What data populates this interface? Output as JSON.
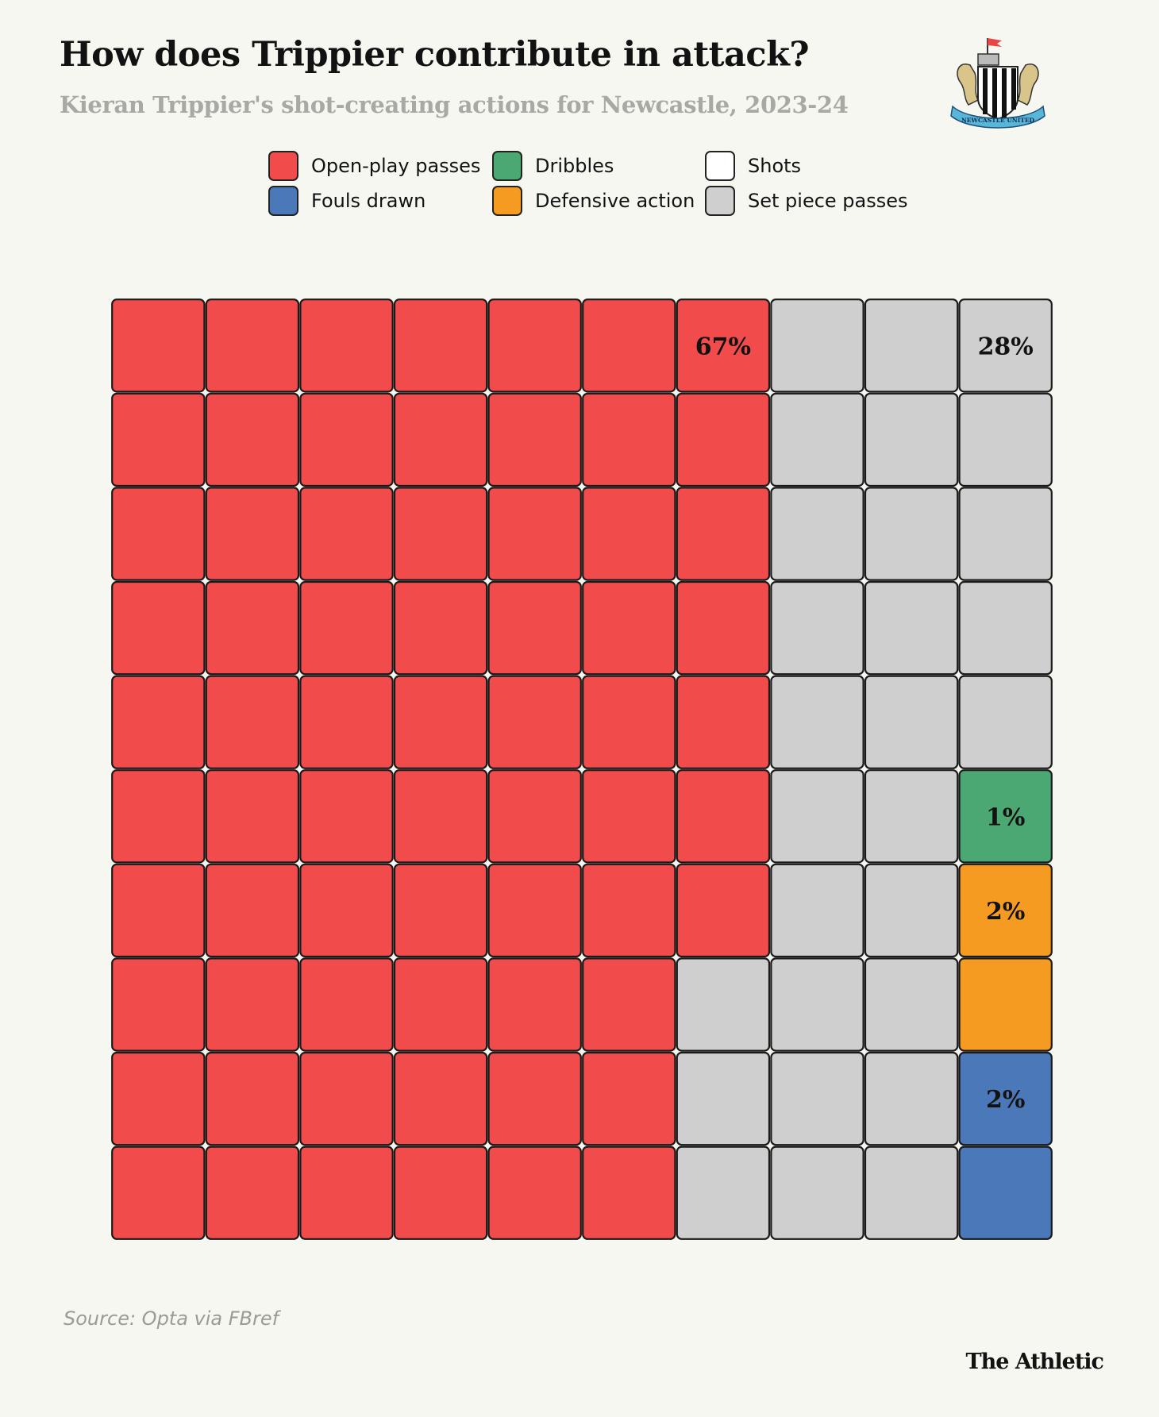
{
  "title": "How does Trippier contribute in attack?",
  "subtitle": "Kieran Trippier's shot-creating actions for Newcastle, 2023-24",
  "source": "Source: Opta via FBref",
  "brand": "The Athletic",
  "crest_text": "NEWCASTLE UNITED",
  "legend": [
    {
      "label": "Open-play passes",
      "color": "#f24b4b"
    },
    {
      "label": "Dribbles",
      "color": "#4ca872"
    },
    {
      "label": "Shots",
      "color": "#ffffff"
    },
    {
      "label": "Fouls drawn",
      "color": "#4a78b8"
    },
    {
      "label": "Defensive action",
      "color": "#f59b21"
    },
    {
      "label": "Set piece passes",
      "color": "#cfcfcf"
    }
  ],
  "chart_data": {
    "type": "waffle",
    "title": "How does Trippier contribute in attack?",
    "subtitle": "Kieran Trippier's shot-creating actions for Newcastle, 2023-24",
    "rows": 10,
    "cols": 10,
    "fill_order": "column-major",
    "categories": [
      "Open-play passes",
      "Set piece passes",
      "Dribbles",
      "Defensive action",
      "Fouls drawn",
      "Shots"
    ],
    "values": [
      67,
      28,
      1,
      2,
      2,
      0
    ],
    "colors": [
      "#f24b4b",
      "#cfcfcf",
      "#4ca872",
      "#f59b21",
      "#4a78b8",
      "#ffffff"
    ],
    "data_labels": [
      "67%",
      "28%",
      "1%",
      "2%",
      "2%",
      ""
    ]
  }
}
